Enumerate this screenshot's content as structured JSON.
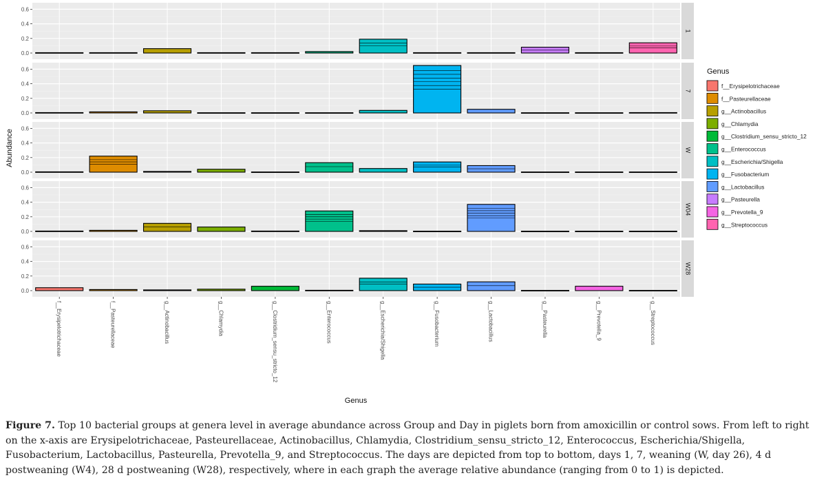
{
  "chart_data": {
    "type": "bar",
    "ylabel": "Abundance",
    "xlabel": "Genus",
    "ylim": [
      0,
      0.6
    ],
    "yticks": [
      "0.0",
      "0.2",
      "0.4",
      "0.6"
    ],
    "grid": true,
    "legend_position": "right",
    "legend_title": "Genus",
    "categories": [
      "f__Erysipelotrichaceae",
      "f__Pasteurellaceae",
      "g__Actinobacillus",
      "g__Chlamydia",
      "g__Clostridium_sensu_stricto_12",
      "g__Enterococcus",
      "g__Escherichia/Shigella",
      "g__Fusobacterium",
      "g__Lactobacillus",
      "g__Pasteurella",
      "g__Prevotella_9",
      "g__Streptococcus"
    ],
    "colors": [
      "#F8766D",
      "#DE8C00",
      "#B79F00",
      "#7CAE00",
      "#00BA38",
      "#00C08B",
      "#00BFC4",
      "#00B4F0",
      "#619CFF",
      "#C77CFF",
      "#F564E3",
      "#FF64B0"
    ],
    "panels": [
      {
        "name": "1",
        "values": [
          0.005,
          0.005,
          0.06,
          0.005,
          0.005,
          0.02,
          0.19,
          0.005,
          0.005,
          0.08,
          0.005,
          0.14
        ]
      },
      {
        "name": "7",
        "values": [
          0.005,
          0.015,
          0.03,
          0.003,
          0.003,
          0.003,
          0.035,
          0.65,
          0.05,
          0.003,
          0.003,
          0.005
        ]
      },
      {
        "name": "W",
        "values": [
          0.005,
          0.22,
          0.01,
          0.04,
          0.003,
          0.13,
          0.05,
          0.14,
          0.09,
          0.003,
          0.003,
          0.003
        ]
      },
      {
        "name": "W04",
        "values": [
          0.005,
          0.015,
          0.11,
          0.06,
          0.005,
          0.28,
          0.01,
          0.003,
          0.37,
          0.003,
          0.003,
          0.003
        ]
      },
      {
        "name": "W28",
        "values": [
          0.04,
          0.015,
          0.01,
          0.02,
          0.06,
          0.005,
          0.17,
          0.09,
          0.12,
          0.003,
          0.06,
          0.003
        ]
      }
    ]
  },
  "caption": {
    "label": "Figure 7.",
    "text": "Top 10 bacterial groups at genera level in average abundance across Group and Day in piglets born from amoxicillin or control sows. From left to right on the x-axis are Erysipelotrichaceae, Pasteurellaceae, Actinobacillus, Chlamydia, Clostridium_sensu_stricto_12, Enterococcus, Escherichia/Shigella, Fusobacterium, Lactobacillus, Pasteurella, Prevotella_9, and Streptococcus. The days are depicted from top to bottom, days 1, 7, weaning (W, day 26), 4 d postweaning (W4), 28 d postweaning (W28), respectively, where in each graph the average relative abundance (ranging from 0 to 1) is depicted."
  }
}
